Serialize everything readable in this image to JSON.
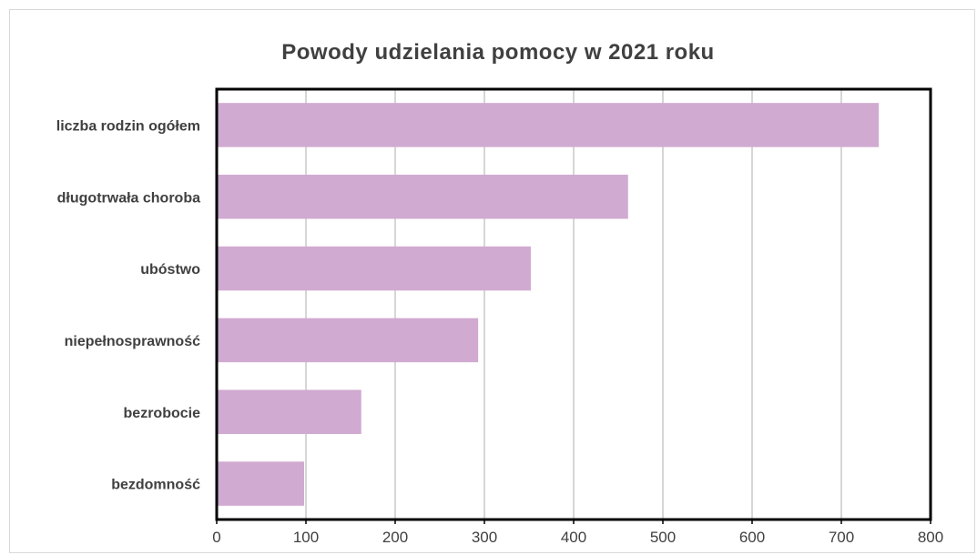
{
  "chart_data": {
    "type": "bar",
    "orientation": "horizontal",
    "title": "Powody udzielania pomocy w 2021 roku",
    "categories": [
      "liczba rodzin ogółem",
      "długotrwała choroba",
      "ubóstwo",
      "niepełnosprawność",
      "bezrobocie",
      "bezdomność"
    ],
    "values": [
      742,
      461,
      352,
      293,
      162,
      98
    ],
    "xlim": [
      0,
      800
    ],
    "xticks": [
      "0",
      "100",
      "200",
      "300",
      "400",
      "500",
      "600",
      "700",
      "800"
    ],
    "grid": true,
    "legend": "none",
    "bar_color": "#d0aad0",
    "gridline_color": "#c8c8c8",
    "axis_color": "#000000"
  }
}
